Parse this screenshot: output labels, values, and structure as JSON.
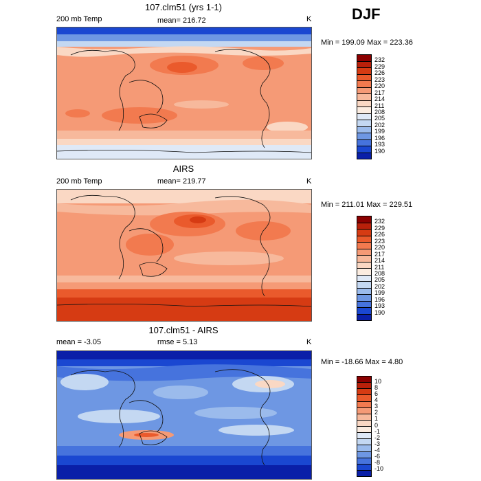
{
  "season": "DJF",
  "panels": [
    {
      "id": "model",
      "title": "107.clm51 (yrs 1-1)",
      "variable": "200 mb Temp",
      "stat_text": "mean= 216.72",
      "units": "K",
      "minmax": "Min = 199.09 Max = 223.36",
      "colorbar": {
        "labels": [
          "232",
          "229",
          "226",
          "223",
          "220",
          "217",
          "214",
          "211",
          "208",
          "205",
          "202",
          "199",
          "196",
          "193",
          "190"
        ],
        "colors": [
          "#8b0000",
          "#b8200a",
          "#d63b13",
          "#ea5a2c",
          "#f27a4f",
          "#f59a76",
          "#f7b99c",
          "#fad8c4",
          "#fbece0",
          "#dfe9f7",
          "#c4d8f2",
          "#9bbbec",
          "#6e97e3",
          "#4673dd",
          "#1a47d1",
          "#0a1fa8"
        ]
      }
    },
    {
      "id": "obs",
      "title": "AIRS",
      "variable": "200 mb Temp",
      "stat_text": "mean= 219.77",
      "units": "K",
      "minmax": "Min = 211.01 Max = 229.51",
      "colorbar": {
        "labels": [
          "232",
          "229",
          "226",
          "223",
          "220",
          "217",
          "214",
          "211",
          "208",
          "205",
          "202",
          "199",
          "196",
          "193",
          "190"
        ],
        "colors": [
          "#8b0000",
          "#b8200a",
          "#d63b13",
          "#ea5a2c",
          "#f27a4f",
          "#f59a76",
          "#f7b99c",
          "#fad8c4",
          "#fbece0",
          "#dfe9f7",
          "#c4d8f2",
          "#9bbbec",
          "#6e97e3",
          "#4673dd",
          "#1a47d1",
          "#0a1fa8"
        ]
      }
    },
    {
      "id": "diff",
      "title": "107.clm51 - AIRS",
      "variable": "mean =   -3.05",
      "stat_text": "rmse =    5.13",
      "units": "K",
      "minmax": "Min = -18.66 Max =    4.80",
      "colorbar": {
        "labels": [
          "10",
          "8",
          "6",
          "4",
          "3",
          "2",
          "1",
          "0",
          "-1",
          "-2",
          "-3",
          "-4",
          "-6",
          "-8",
          "-10"
        ],
        "colors": [
          "#8b0000",
          "#b8200a",
          "#d63b13",
          "#ea5a2c",
          "#f27a4f",
          "#f59a76",
          "#f7b99c",
          "#fad8c4",
          "#fbece0",
          "#dfe9f7",
          "#c4d8f2",
          "#9bbbec",
          "#6e97e3",
          "#4673dd",
          "#1a47d1",
          "#0a1fa8"
        ]
      }
    }
  ]
}
